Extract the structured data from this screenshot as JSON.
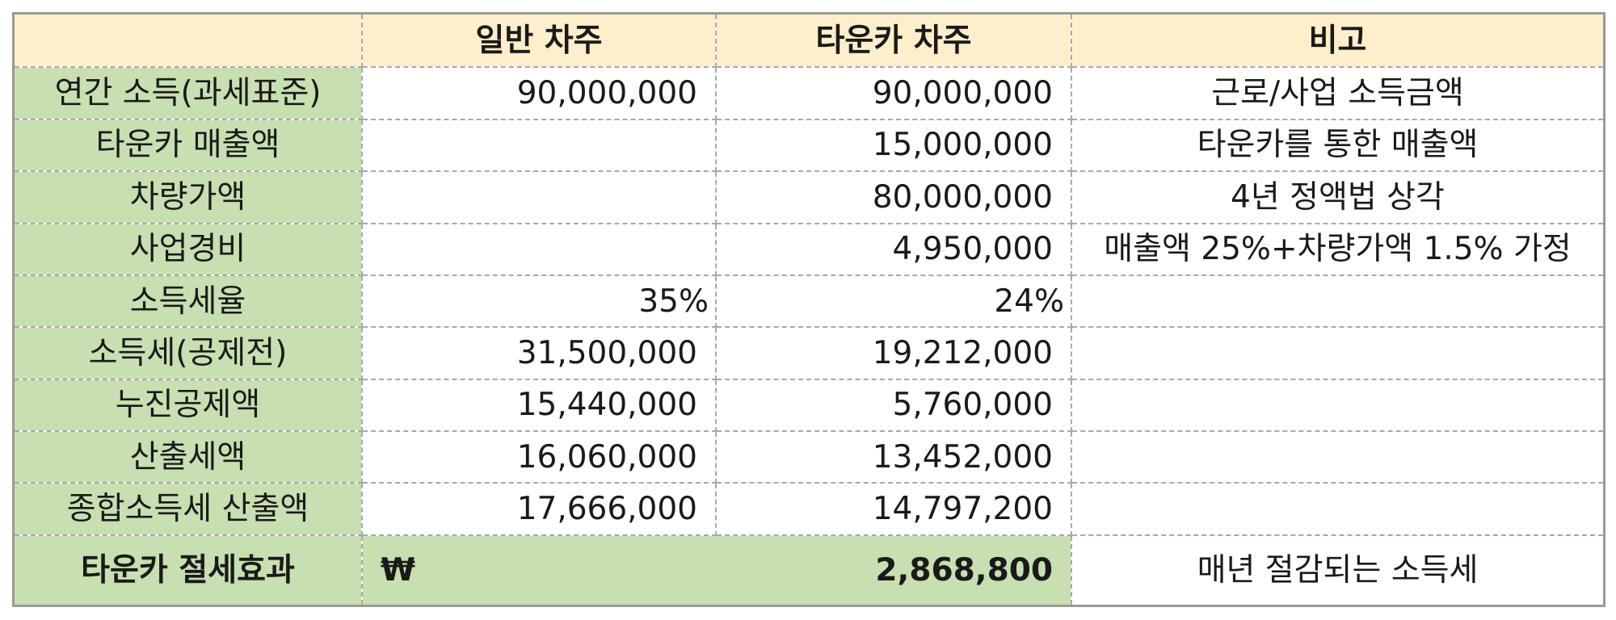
{
  "table": {
    "headers": [
      "",
      "일반 차주",
      "타운카 차주",
      "비고"
    ],
    "rows": [
      {
        "label": "연간 소득(과세표준)",
        "general": "90,000,000",
        "towncar": "90,000,000",
        "note": "근로/사업 소득금액"
      },
      {
        "label": "타운카 매출액",
        "general": "",
        "towncar": "15,000,000",
        "note": "타운카를 통한 매출액"
      },
      {
        "label": "차량가액",
        "general": "",
        "towncar": "80,000,000",
        "note": "4년 정액법 상각"
      },
      {
        "label": "사업경비",
        "general": "",
        "towncar": "4,950,000",
        "note": "매출액 25%+차량가액 1.5% 가정"
      },
      {
        "label": "소득세율",
        "general": "35%",
        "towncar": "24%",
        "note": ""
      },
      {
        "label": "소득세(공제전)",
        "general": "31,500,000",
        "towncar": "19,212,000",
        "note": ""
      },
      {
        "label": "누진공제액",
        "general": "15,440,000",
        "towncar": "5,760,000",
        "note": ""
      },
      {
        "label": "산출세액",
        "general": "16,060,000",
        "towncar": "13,452,000",
        "note": ""
      },
      {
        "label": "종합소득세 산출액",
        "general": "17,666,000",
        "towncar": "14,797,200",
        "note": ""
      }
    ],
    "total": {
      "label": "타운카 절세효과",
      "currency": "₩",
      "value": "2,868,800",
      "note": "매년 절감되는 소득세"
    }
  },
  "colors": {
    "header_bg": "#fdefcc",
    "label_bg": "#c8dfb1",
    "border": "#a8a8a8"
  }
}
